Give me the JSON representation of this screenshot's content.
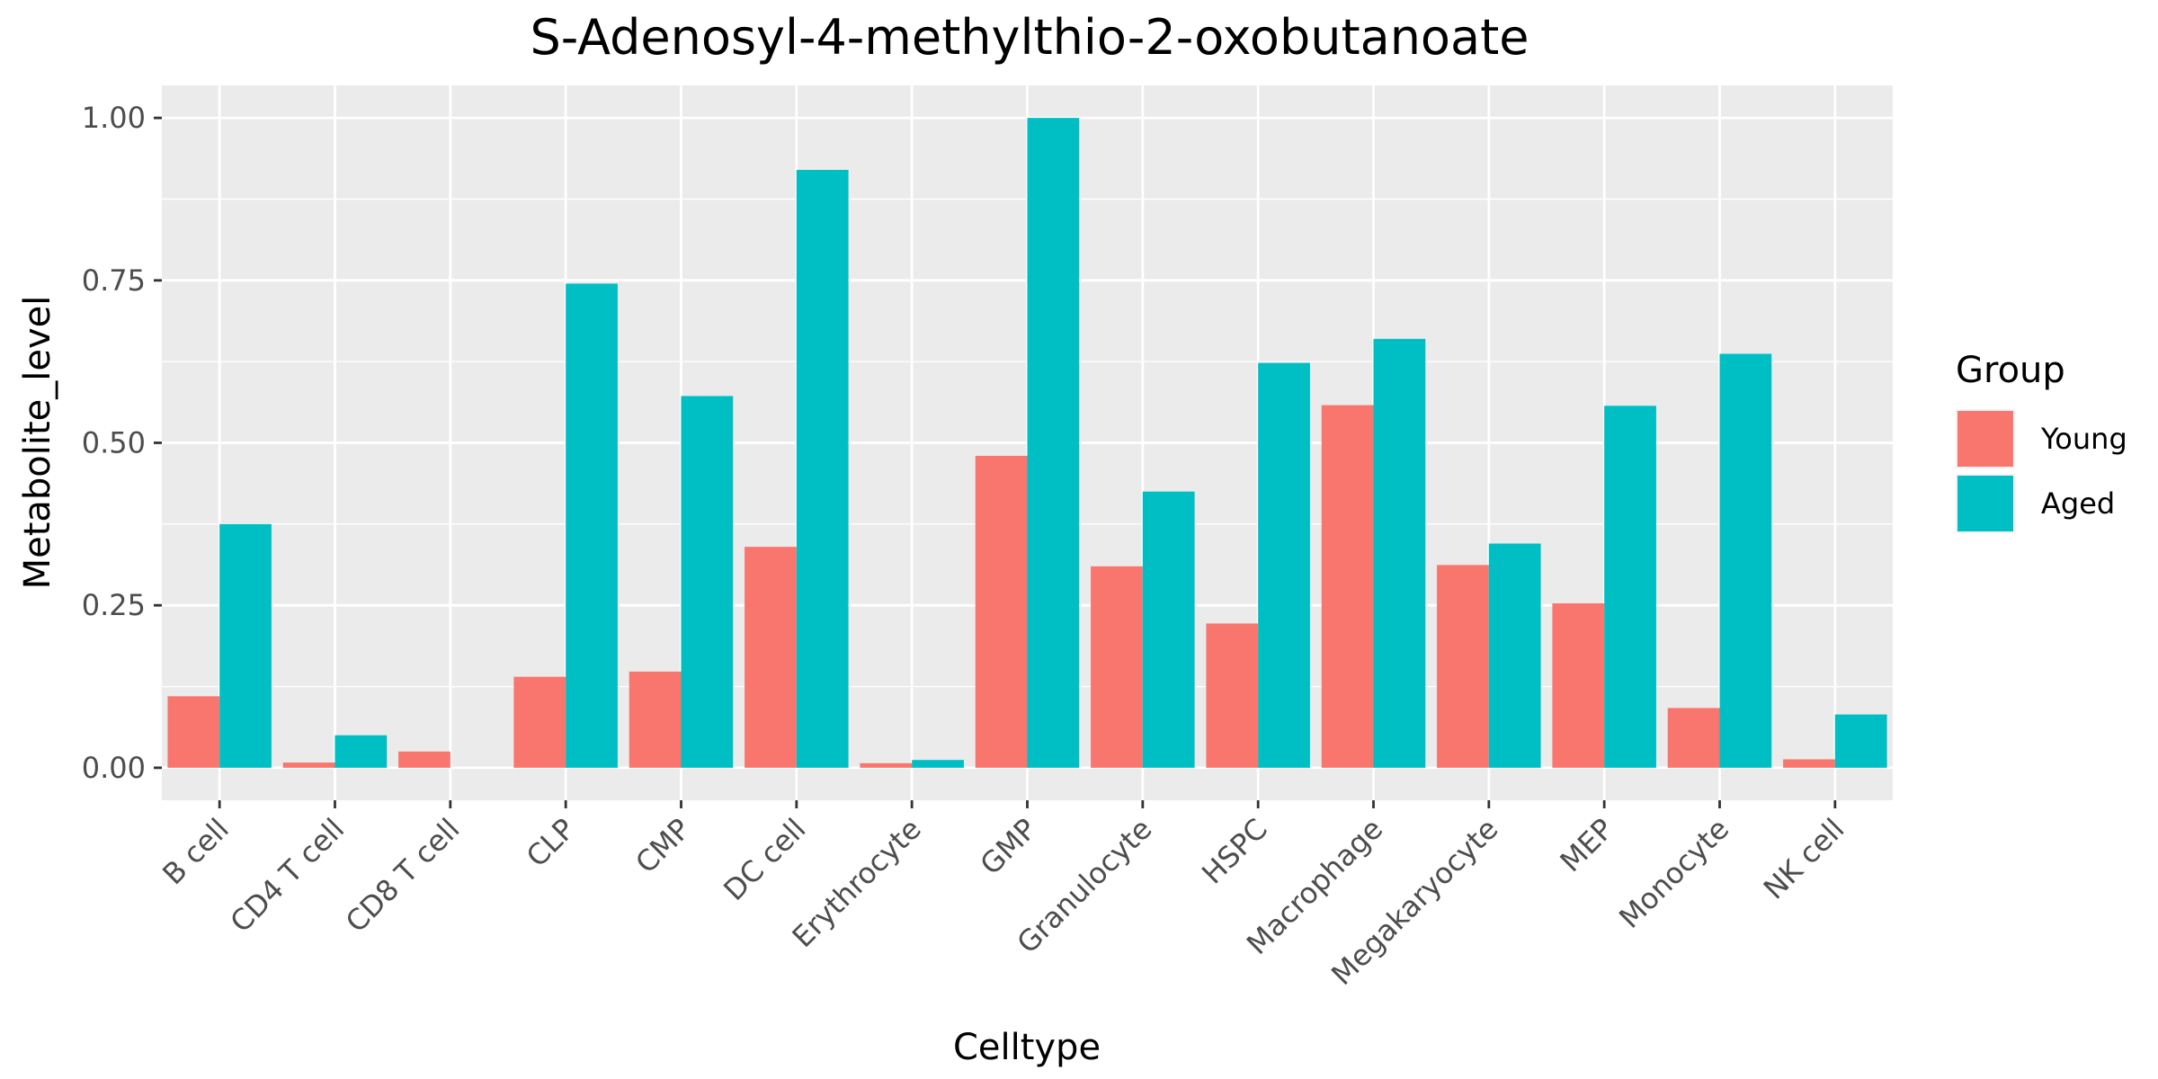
{
  "chart_data": {
    "type": "bar",
    "title": "S-Adenosyl-4-methylthio-2-oxobutanoate",
    "xlabel": "Celltype",
    "ylabel": "Metabolite_level",
    "ylim": [
      -0.05,
      1.05
    ],
    "yticks": [
      "0.00",
      "0.25",
      "0.50",
      "0.75",
      "1.00"
    ],
    "ytick_values": [
      0,
      0.25,
      0.5,
      0.75,
      1.0
    ],
    "grid": true,
    "legend": {
      "title": "Group",
      "placement": "right"
    },
    "categories": [
      "B cell",
      "CD4 T cell",
      "CD8 T cell",
      "CLP",
      "CMP",
      "DC cell",
      "Erythrocyte",
      "GMP",
      "Granulocyte",
      "HSPC",
      "Macrophage",
      "Megakaryocyte",
      "MEP",
      "Monocyte",
      "NK cell"
    ],
    "series": [
      {
        "name": "Young",
        "color": "#F8766D",
        "values": [
          0.11,
          0.008,
          0.025,
          0.14,
          0.148,
          0.34,
          0.007,
          0.48,
          0.31,
          0.222,
          0.558,
          0.312,
          0.253,
          0.092,
          0.013
        ]
      },
      {
        "name": "Aged",
        "color": "#00BFC4",
        "values": [
          0.375,
          0.05,
          0.0,
          0.745,
          0.572,
          0.92,
          0.012,
          1.0,
          0.425,
          0.623,
          0.66,
          0.345,
          0.557,
          0.637,
          0.082
        ]
      }
    ],
    "panel_background": "#EBEBEB",
    "grid_color": "#FFFFFF"
  }
}
